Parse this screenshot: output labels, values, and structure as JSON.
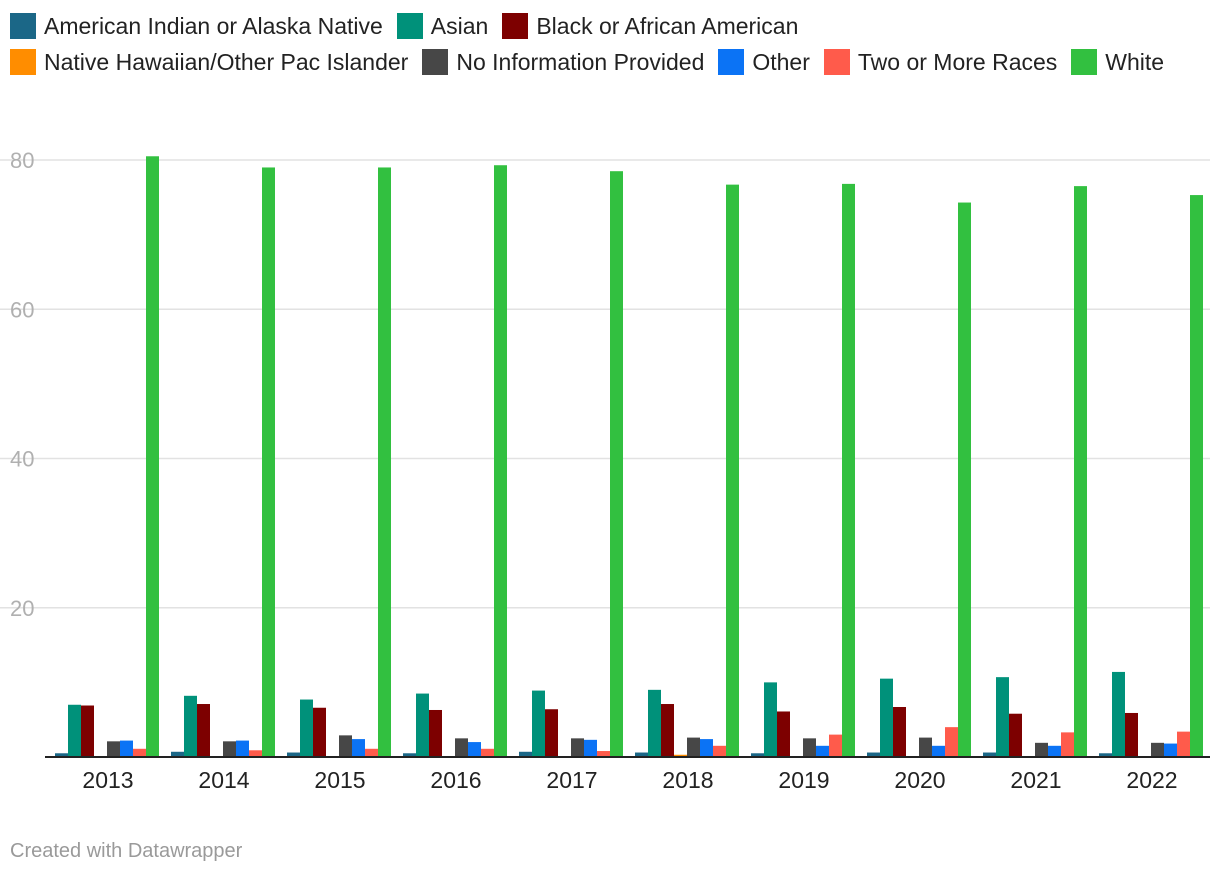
{
  "chart_data": {
    "type": "bar",
    "categories": [
      "2013",
      "2014",
      "2015",
      "2016",
      "2017",
      "2018",
      "2019",
      "2020",
      "2021",
      "2022"
    ],
    "ylim": [
      0,
      80
    ],
    "yticks": [
      20,
      40,
      60,
      80
    ],
    "grid": true,
    "legend_position": "top",
    "series": [
      {
        "name": "American Indian or Alaska Native",
        "color": "#1b6787",
        "values": [
          0.5,
          0.7,
          0.6,
          0.5,
          0.7,
          0.6,
          0.5,
          0.6,
          0.6,
          0.5
        ]
      },
      {
        "name": "Asian",
        "color": "#00917a",
        "values": [
          7.0,
          8.2,
          7.7,
          8.5,
          8.9,
          9.0,
          10.0,
          10.5,
          10.7,
          11.4
        ]
      },
      {
        "name": "Black or African American",
        "color": "#7d0000",
        "values": [
          6.9,
          7.1,
          6.6,
          6.3,
          6.4,
          7.1,
          6.1,
          6.7,
          5.8,
          5.9
        ]
      },
      {
        "name": "Native Hawaiian/Other Pac Islander",
        "color": "#ff8d00",
        "values": [
          0.1,
          0.1,
          0.1,
          0.1,
          0.1,
          0.3,
          0.1,
          0.1,
          0.1,
          0.1
        ]
      },
      {
        "name": "No Information Provided",
        "color": "#474747",
        "values": [
          2.1,
          2.1,
          2.9,
          2.5,
          2.5,
          2.6,
          2.5,
          2.6,
          1.9,
          1.9
        ]
      },
      {
        "name": "Other",
        "color": "#0b73f5",
        "values": [
          2.2,
          2.2,
          2.4,
          2.0,
          2.3,
          2.4,
          1.5,
          1.5,
          1.5,
          1.8
        ]
      },
      {
        "name": "Two or More Races",
        "color": "#ff5b4b",
        "values": [
          1.1,
          0.9,
          1.1,
          1.1,
          0.8,
          1.5,
          3.0,
          4.0,
          3.3,
          3.4
        ]
      },
      {
        "name": "White",
        "color": "#32c040",
        "values": [
          80.5,
          79.0,
          79.0,
          79.3,
          78.5,
          76.7,
          76.8,
          74.3,
          76.5,
          75.3
        ]
      }
    ]
  },
  "credit": "Created with Datawrapper"
}
